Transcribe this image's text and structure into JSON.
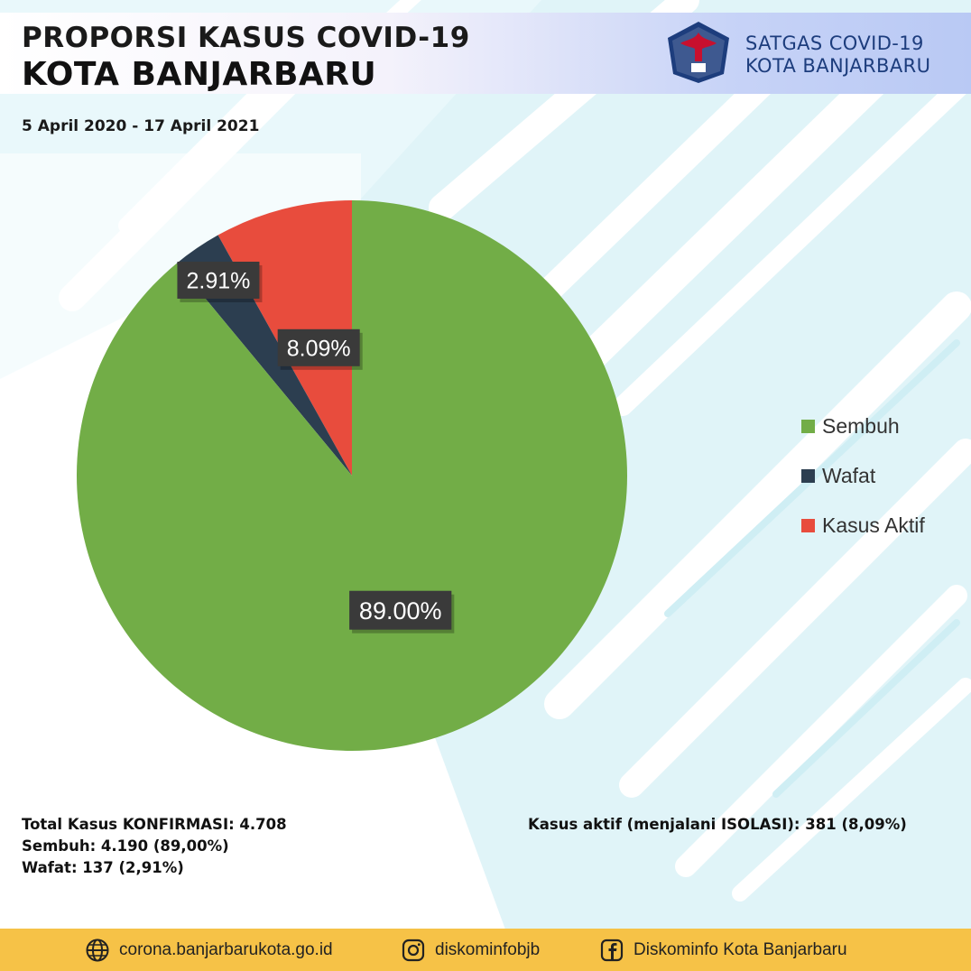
{
  "header": {
    "title_line1": "PROPORSI KASUS COVID-19",
    "title_line2": "KOTA BANJARBARU",
    "period": "5 April 2020 - 17 April 2021",
    "org_line1": "SATGAS COVID-19",
    "org_line2": "KOTA BANJARBARU",
    "logo_icon": "garuda-emblem-icon"
  },
  "chart_data": {
    "type": "pie",
    "title": "",
    "slices": [
      {
        "label": "Kasus Aktif",
        "value": 8.09,
        "display": "8.09%",
        "color": "#e84c3d"
      },
      {
        "label": "Wafat",
        "value": 2.91,
        "display": "2.91%",
        "color": "#2c3e50"
      },
      {
        "label": "Sembuh",
        "value": 89.0,
        "display": "89.00%",
        "color": "#72ad47"
      }
    ],
    "legend": {
      "placement": "right",
      "entries": [
        "Sembuh",
        "Wafat",
        "Kasus Aktif"
      ]
    }
  },
  "stats": {
    "total": "Total Kasus KONFIRMASI: 4.708",
    "sembuh": "Sembuh: 4.190 (89,00%)",
    "wafat": "Wafat: 137 (2,91%)",
    "aktif": "Kasus aktif (menjalani ISOLASI): 381 (8,09%)"
  },
  "footer": {
    "website": "corona.banjarbarukota.go.id",
    "website_icon": "globe-icon",
    "instagram": "diskominfobjb",
    "instagram_icon": "instagram-icon",
    "facebook": "Diskominfo Kota Banjarbaru",
    "facebook_icon": "facebook-icon",
    "bar_color": "#f6c247"
  }
}
